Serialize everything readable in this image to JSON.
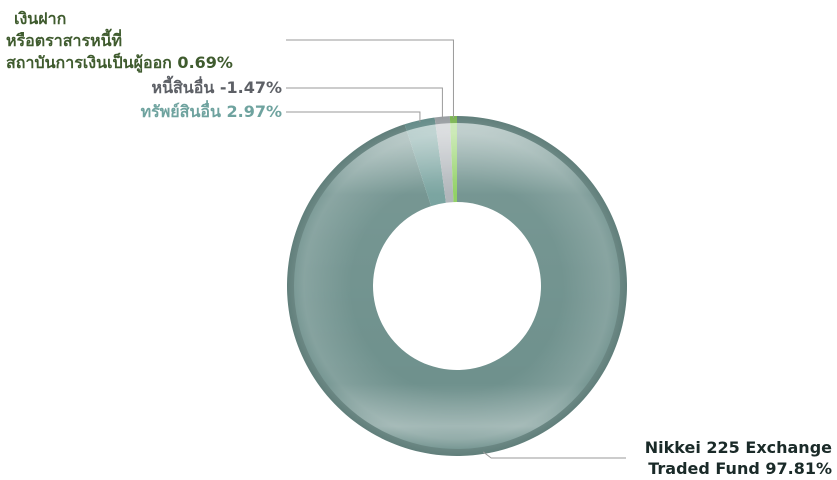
{
  "chart_data": {
    "type": "donut",
    "title": "",
    "legend": "none",
    "slices": [
      {
        "name": "Nikkei 225 Exchange Traded Fund",
        "value": 97.81,
        "label_lines": [
          "Nikkei 225 Exchange",
          "Traded Fund 97.81%"
        ],
        "color": "#6f918d",
        "label_color": "#1a2a28"
      },
      {
        "name": "ทรัพย์สินอื่น",
        "value": 2.97,
        "label_lines": [
          "ทรัพย์สินอื่น 2.97%"
        ],
        "color": "#74a09c",
        "label_color": "#6fa39f"
      },
      {
        "name": "หนี้สินอื่น",
        "value": -1.47,
        "label_lines": [
          "หนี้สินอื่น -1.47%"
        ],
        "color": "#aeb3b8",
        "label_color": "#5d6066"
      },
      {
        "name": "เงินฝากหรือตราสารหนี้ที่สถาบันการเงินเป็นผู้ออก",
        "value": 0.69,
        "label_lines": [
          "เงินฝาก",
          "หรือตราสารหนี้ที่",
          "สถาบันการเงินเป็นผู้ออก 0.69%"
        ],
        "color": "#8ccf5e",
        "label_color": "#3f5b2e"
      }
    ]
  }
}
